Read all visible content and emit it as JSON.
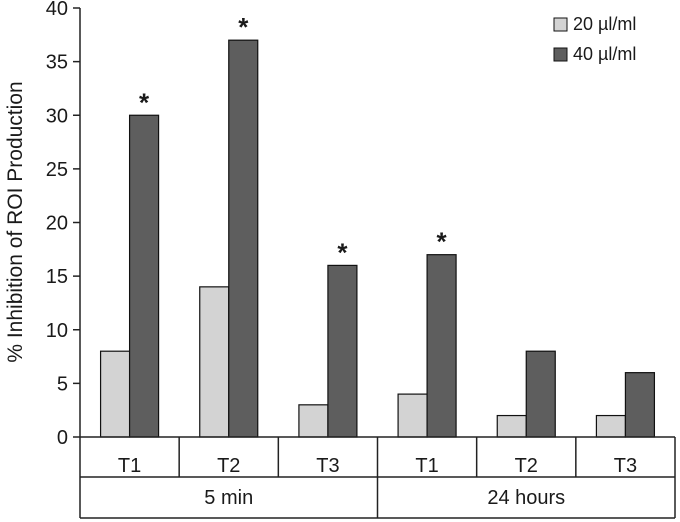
{
  "chart_data": {
    "type": "bar",
    "title": "",
    "xlabel": "",
    "ylabel": "% Inhibition of ROI Production",
    "ylim": [
      0,
      40
    ],
    "yticks": [
      0,
      5,
      10,
      15,
      20,
      25,
      30,
      35,
      40
    ],
    "categories": [
      "T1",
      "T2",
      "T3",
      "T1",
      "T2",
      "T3"
    ],
    "groups": [
      {
        "label": "5 min",
        "categories": [
          "T1",
          "T2",
          "T3"
        ]
      },
      {
        "label": "24 hours",
        "categories": [
          "T1",
          "T2",
          "T3"
        ]
      }
    ],
    "series": [
      {
        "name": "20 µl/ml",
        "color": "#d3d3d3",
        "values": [
          8,
          14,
          3,
          4,
          2,
          2
        ]
      },
      {
        "name": "40 µl/ml",
        "color": "#5e5e5e",
        "values": [
          30,
          37,
          16,
          17,
          8,
          6
        ]
      }
    ],
    "significance_marker": "*",
    "significant": [
      [
        false,
        false,
        false,
        false,
        false,
        false
      ],
      [
        true,
        true,
        true,
        true,
        false,
        false
      ]
    ],
    "grid": false,
    "legend_position": "top-right"
  }
}
